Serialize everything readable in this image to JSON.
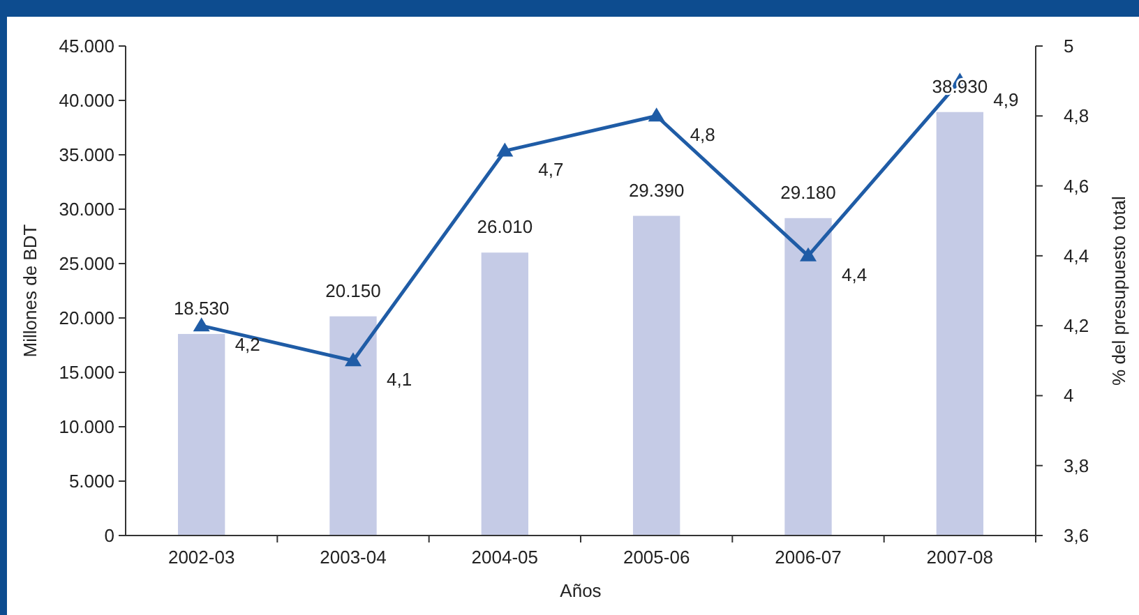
{
  "chart_data": {
    "type": "bar",
    "xlabel": "Años",
    "ylabel": "Millones de BDT",
    "y2label": "% del presupuesto total",
    "categories": [
      "2002-03",
      "2003-04",
      "2004-05",
      "2005-06",
      "2006-07",
      "2007-08"
    ],
    "series": [
      {
        "color": "#c5cbe6",
        "values": [
          18530,
          20150,
          26010,
          29390,
          29180,
          38930
        ],
        "value_labels": [
          "18.530",
          "20.150",
          "26.010",
          "29.390",
          "29.180",
          "38.930"
        ]
      },
      {
        "type": "line",
        "axis": "y2",
        "color": "#1f5ca6",
        "marker": "triangle",
        "line_style": "solid",
        "values": [
          4.2,
          4.1,
          4.7,
          4.8,
          4.4,
          4.9
        ],
        "value_labels": [
          "4,2",
          "4,1",
          "4,7",
          "4,8",
          "4,4",
          "4,9"
        ]
      }
    ],
    "ylim": [
      0,
      45000
    ],
    "yticks": [
      {
        "value": 0,
        "label": "0"
      },
      {
        "value": 5000,
        "label": "5.000"
      },
      {
        "value": 10000,
        "label": "10.000"
      },
      {
        "value": 15000,
        "label": "15.000"
      },
      {
        "value": 20000,
        "label": "20.000"
      },
      {
        "value": 25000,
        "label": "25.000"
      },
      {
        "value": 30000,
        "label": "30.000"
      },
      {
        "value": 35000,
        "label": "35.000"
      },
      {
        "value": 40000,
        "label": "40.000"
      },
      {
        "value": 45000,
        "label": "45.000"
      }
    ],
    "y2lim": [
      3.6,
      5
    ],
    "y2ticks": [
      {
        "value": 3.6,
        "label": "3,6"
      },
      {
        "value": 3.8,
        "label": "3,8"
      },
      {
        "value": 4,
        "label": "4"
      },
      {
        "value": 4.2,
        "label": "4,2"
      },
      {
        "value": 4.4,
        "label": "4,4"
      },
      {
        "value": 4.6,
        "label": "4,6"
      },
      {
        "value": 4.8,
        "label": "4,8"
      },
      {
        "value": 5,
        "label": "5"
      }
    ],
    "grid": false
  }
}
